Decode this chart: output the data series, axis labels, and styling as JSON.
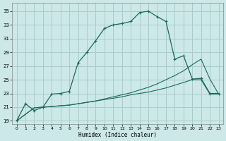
{
  "xlabel": "Humidex (Indice chaleur)",
  "bg_color": "#cce8e8",
  "grid_color": "#aacccc",
  "line_color": "#1a6b5a",
  "xlim": [
    -0.5,
    23.5
  ],
  "ylim": [
    18.5,
    36.2
  ],
  "xticks": [
    0,
    1,
    2,
    3,
    4,
    5,
    6,
    7,
    8,
    9,
    10,
    11,
    12,
    13,
    14,
    15,
    16,
    17,
    18,
    19,
    20,
    21,
    22,
    23
  ],
  "yticks": [
    19,
    21,
    23,
    25,
    27,
    29,
    31,
    33,
    35
  ],
  "line1_x": [
    0,
    1,
    2,
    3,
    4,
    5,
    6,
    7,
    8,
    9,
    10,
    11,
    12,
    13,
    14,
    15,
    16,
    17,
    18,
    19,
    20,
    21,
    22,
    23
  ],
  "line1_y": [
    19.0,
    21.5,
    20.5,
    21.0,
    22.9,
    23.0,
    23.3,
    27.5,
    29.0,
    30.7,
    32.5,
    33.0,
    33.2,
    33.5,
    34.8,
    35.0,
    34.2,
    33.5,
    28.0,
    28.5,
    25.1,
    25.2,
    23.0,
    23.0
  ],
  "line2_x": [
    0,
    2,
    3,
    4,
    5,
    6,
    7,
    8,
    9,
    10,
    11,
    12,
    13,
    14,
    15,
    16,
    17,
    18,
    19,
    20,
    21,
    22,
    23
  ],
  "line2_y": [
    19.0,
    20.9,
    21.0,
    21.1,
    21.2,
    21.3,
    21.5,
    21.7,
    21.9,
    22.1,
    22.3,
    22.5,
    22.8,
    23.0,
    23.2,
    23.5,
    23.8,
    24.2,
    24.6,
    25.0,
    25.0,
    22.9,
    22.9
  ],
  "line3_x": [
    0,
    2,
    3,
    4,
    5,
    6,
    7,
    8,
    9,
    10,
    11,
    12,
    13,
    14,
    15,
    16,
    17,
    18,
    19,
    20,
    21,
    22,
    23
  ],
  "line3_y": [
    19.0,
    20.9,
    21.0,
    21.1,
    21.2,
    21.3,
    21.5,
    21.7,
    21.9,
    22.2,
    22.5,
    22.8,
    23.1,
    23.5,
    23.9,
    24.4,
    25.0,
    25.6,
    26.3,
    27.2,
    28.0,
    25.1,
    22.9
  ]
}
